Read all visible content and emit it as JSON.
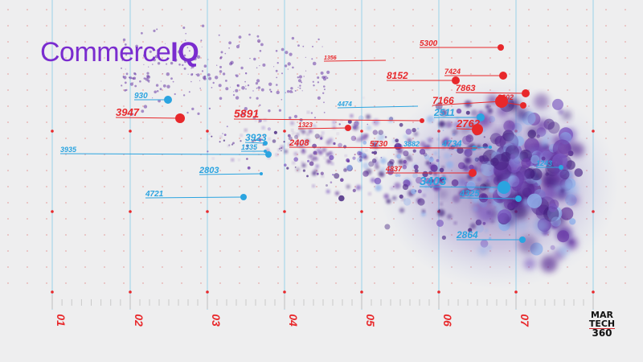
{
  "brand": {
    "prefix": "Commerce",
    "suffix": "IQ",
    "color": "#7a2ccf"
  },
  "badge": {
    "line1": "MAR",
    "line2": "TECH",
    "line3": "360"
  },
  "colors": {
    "background": "#eeeeef",
    "grid": "#58bde8",
    "red": "#e8282b",
    "blue": "#2ba4e0",
    "purple": "#5b2d91"
  },
  "axis_labels": [
    "01",
    "02",
    "03",
    "04",
    "05",
    "06",
    "07"
  ],
  "blue_callouts": [
    {
      "label": "930"
    },
    {
      "label": "3935"
    },
    {
      "label": "3923"
    },
    {
      "label": "1335"
    },
    {
      "label": "2803"
    },
    {
      "label": "4721"
    },
    {
      "label": "4474"
    },
    {
      "label": "2511"
    },
    {
      "label": "3882"
    },
    {
      "label": "4734"
    },
    {
      "label": "1243"
    },
    {
      "label": "3403"
    },
    {
      "label": "4325"
    },
    {
      "label": "2864"
    }
  ],
  "red_callouts": [
    {
      "label": "5300"
    },
    {
      "label": "1356"
    },
    {
      "label": "7424"
    },
    {
      "label": "8152"
    },
    {
      "label": "7863"
    },
    {
      "label": "2602"
    },
    {
      "label": "7166"
    },
    {
      "label": "3947"
    },
    {
      "label": "5891"
    },
    {
      "label": "1323"
    },
    {
      "label": "2762"
    },
    {
      "label": "2408"
    },
    {
      "label": "5730"
    },
    {
      "label": "4837"
    }
  ]
}
